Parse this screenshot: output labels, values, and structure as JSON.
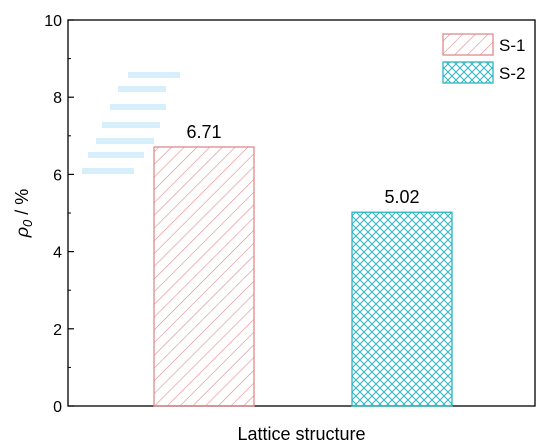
{
  "chart_data": {
    "type": "bar",
    "categories": [
      "S-1",
      "S-2"
    ],
    "values": [
      6.71,
      5.02
    ],
    "value_labels": [
      "6.71",
      "5.02"
    ],
    "xlabel": "Lattice structure",
    "ylabel_symbol": "ρ",
    "ylabel_subscript": "0",
    "ylabel_unit": " / %",
    "ylim": [
      0,
      10
    ],
    "yticks": [
      0,
      2,
      4,
      6,
      8,
      10
    ],
    "ytick_labels": [
      "0",
      "2",
      "4",
      "6",
      "8",
      "10"
    ],
    "grid": false,
    "legend_position": "top-right",
    "colors": [
      "#e08a8a",
      "#2bb5c1"
    ],
    "patterns": [
      "diagonal-hatch",
      "cross-hatch"
    ]
  }
}
